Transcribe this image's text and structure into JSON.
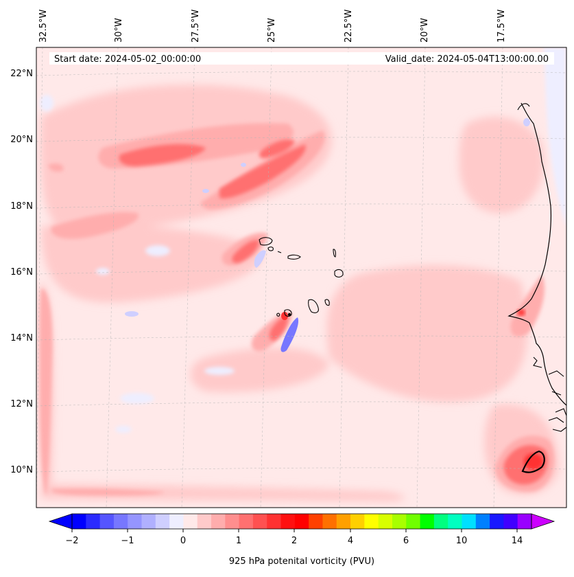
{
  "map": {
    "start_label": "Start date: 2024-05-02_00:00:00",
    "valid_label": "Valid_date: 2024-05-04T13:00:00.00",
    "lon_labels": [
      "32.5°W",
      "30°W",
      "27.5°W",
      "25°W",
      "22.5°W",
      "20°W",
      "17.5°W"
    ],
    "lat_labels": [
      "22°N",
      "20°N",
      "18°N",
      "16°N",
      "14°N",
      "12°N",
      "10°N"
    ],
    "grid": true,
    "colors": {
      "background_pv": "#ffe9e9",
      "coast": "#000000"
    }
  },
  "colorbar": {
    "label": "925 hPa potenital vorticity (PVU)",
    "ticks": [
      "−2",
      "−1",
      "0",
      "1",
      "2",
      "4",
      "6",
      "10",
      "14"
    ],
    "colors": [
      "#0000ff",
      "#2a2aff",
      "#5555ff",
      "#7777ff",
      "#9595ff",
      "#b0b0ff",
      "#cfcfff",
      "#eeeeff",
      "#ffe9e9",
      "#ffcaca",
      "#ffadad",
      "#ff8e8e",
      "#ff7070",
      "#ff5151",
      "#ff3232",
      "#ff1010",
      "#ff0000",
      "#ff4000",
      "#ff7000",
      "#ffa000",
      "#ffd000",
      "#ffff00",
      "#d8ff00",
      "#a8ff00",
      "#70ff00",
      "#00ff00",
      "#00ff80",
      "#00ffc0",
      "#00e0ff",
      "#0080ff",
      "#1818ff",
      "#4000ff",
      "#9900ff"
    ],
    "extend_low": "#0000ff",
    "extend_high": "#cc00ff"
  }
}
